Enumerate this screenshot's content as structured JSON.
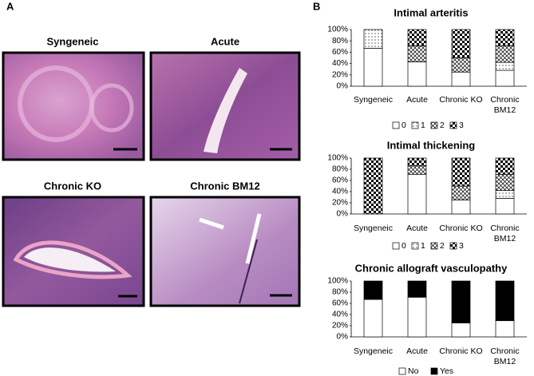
{
  "panel_a": {
    "label": "A",
    "images": [
      {
        "title": "Syngeneic"
      },
      {
        "title": "Acute"
      },
      {
        "title": "Chronic KO"
      },
      {
        "title": "Chronic BM12"
      }
    ]
  },
  "panel_b": {
    "label": "B"
  },
  "chart_data": [
    {
      "type": "stacked_bar",
      "title": "Intimal arteritis",
      "categories": [
        "Syngeneic",
        "Acute",
        "Chronic KO",
        "Chronic BM12"
      ],
      "series": [
        {
          "name": "0",
          "color": "#ffffff",
          "pattern": "none",
          "values": [
            67,
            43,
            25,
            28
          ]
        },
        {
          "name": "1",
          "color": "#ffffff",
          "pattern": "dots",
          "values": [
            33,
            0,
            0,
            14
          ]
        },
        {
          "name": "2",
          "color": "#ffffff",
          "pattern": "crosshatch",
          "values": [
            0,
            28,
            25,
            29
          ]
        },
        {
          "name": "3",
          "color": "#000000",
          "pattern": "checker",
          "values": [
            0,
            29,
            50,
            29
          ]
        }
      ],
      "ylim": [
        0,
        100
      ],
      "yticks": [
        {
          "value": 0,
          "label": "0%"
        },
        {
          "value": 20,
          "label": "20%"
        },
        {
          "value": 40,
          "label": "40%"
        },
        {
          "value": 60,
          "label": "60%"
        },
        {
          "value": 80,
          "label": "80%"
        },
        {
          "value": 100,
          "label": "100%"
        }
      ],
      "grid": false
    },
    {
      "type": "stacked_bar",
      "title": "Intimal thickening",
      "categories": [
        "Syngeneic",
        "Acute",
        "Chronic KO",
        "Chronic BM12"
      ],
      "series": [
        {
          "name": "0",
          "color": "#ffffff",
          "pattern": "none",
          "values": [
            0,
            71,
            25,
            28
          ]
        },
        {
          "name": "1",
          "color": "#ffffff",
          "pattern": "dots",
          "values": [
            0,
            0,
            0,
            14
          ]
        },
        {
          "name": "2",
          "color": "#ffffff",
          "pattern": "crosshatch",
          "values": [
            0,
            15,
            25,
            29
          ]
        },
        {
          "name": "3",
          "color": "#000000",
          "pattern": "checker",
          "values": [
            100,
            14,
            50,
            29
          ]
        }
      ],
      "ylim": [
        0,
        100
      ],
      "yticks": [
        {
          "value": 0,
          "label": "0%"
        },
        {
          "value": 20,
          "label": "20%"
        },
        {
          "value": 40,
          "label": "40%"
        },
        {
          "value": 60,
          "label": "60%"
        },
        {
          "value": 80,
          "label": "80%"
        },
        {
          "value": 100,
          "label": "100%"
        }
      ],
      "grid": false
    },
    {
      "type": "stacked_bar",
      "title": "Chronic allograft vasculopathy",
      "categories": [
        "Syngeneic",
        "Acute",
        "Chronic KO",
        "Chronic BM12"
      ],
      "series": [
        {
          "name": "No",
          "color": "#ffffff",
          "pattern": "none",
          "values": [
            67,
            71,
            25,
            29
          ]
        },
        {
          "name": "Yes",
          "color": "#000000",
          "pattern": "none",
          "values": [
            33,
            29,
            75,
            71
          ]
        }
      ],
      "ylim": [
        0,
        100
      ],
      "yticks": [
        {
          "value": 0,
          "label": "0%"
        },
        {
          "value": 20,
          "label": "20%"
        },
        {
          "value": 40,
          "label": "40%"
        },
        {
          "value": 60,
          "label": "60%"
        },
        {
          "value": 80,
          "label": "80%"
        },
        {
          "value": 100,
          "label": "100%"
        }
      ],
      "grid": false
    }
  ]
}
